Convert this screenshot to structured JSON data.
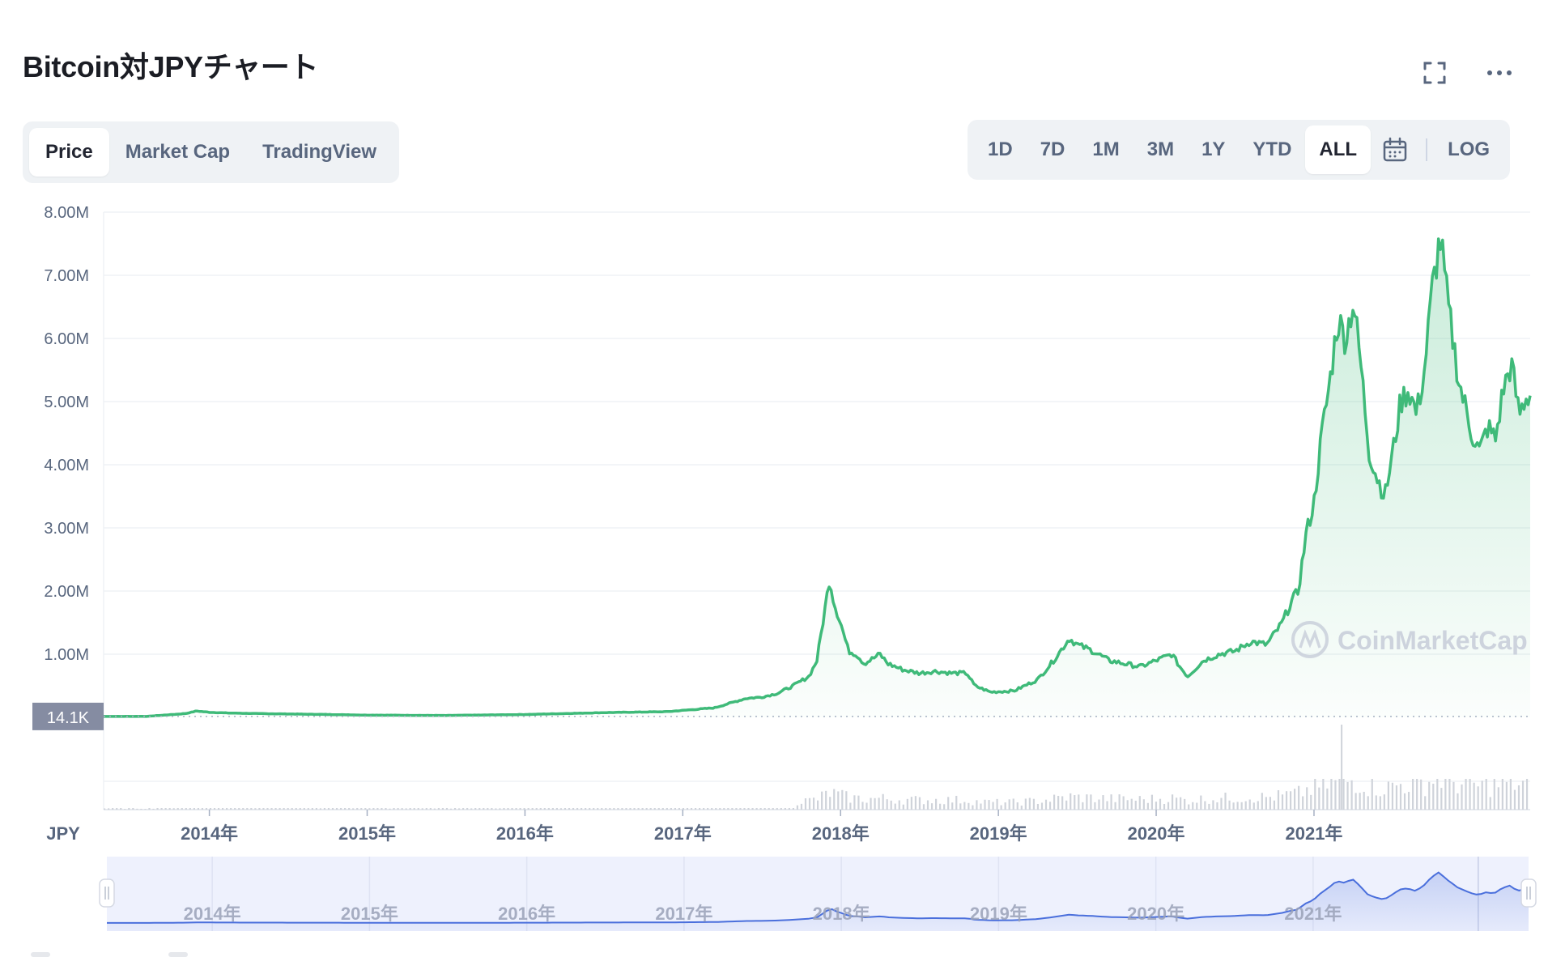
{
  "header": {
    "title": "Bitcoin対JPYチャート",
    "fullscreen_icon": "expand-icon",
    "more_icon": "more-dots-icon"
  },
  "view_tabs": [
    {
      "label": "Price",
      "active": true
    },
    {
      "label": "Market Cap",
      "active": false
    },
    {
      "label": "TradingView",
      "active": false
    }
  ],
  "range_tabs": [
    {
      "label": "1D",
      "active": false
    },
    {
      "label": "7D",
      "active": false
    },
    {
      "label": "1M",
      "active": false
    },
    {
      "label": "3M",
      "active": false
    },
    {
      "label": "1Y",
      "active": false
    },
    {
      "label": "YTD",
      "active": false
    },
    {
      "label": "ALL",
      "active": true
    }
  ],
  "calendar_icon": "calendar-icon",
  "log_label": "LOG",
  "watermark": "CoinMarketCap",
  "colors": {
    "line": "#3fba79",
    "fill": "#3fba79",
    "navigator_line": "#4a6fdc",
    "navigator_bg": "#eef1fd",
    "baseline_badge": "#858ca2",
    "grid": "#eff2f5",
    "axis_text": "#58667e",
    "volume": "#cfd3da"
  },
  "chart_data": {
    "type": "line",
    "title": "Bitcoin対JPYチャート",
    "ylabel": "JPY",
    "ylim": [
      0,
      8000000
    ],
    "y_ticks": [
      "1.00M",
      "2.00M",
      "3.00M",
      "4.00M",
      "5.00M",
      "6.00M",
      "7.00M",
      "8.00M"
    ],
    "y_tick_values": [
      1000000,
      2000000,
      3000000,
      4000000,
      5000000,
      6000000,
      7000000,
      8000000
    ],
    "x_tick_labels": [
      "2014年",
      "2015年",
      "2016年",
      "2017年",
      "2018年",
      "2019年",
      "2020年",
      "2021年"
    ],
    "x_tick_years": [
      2014,
      2015,
      2016,
      2017,
      2018,
      2019,
      2020,
      2021
    ],
    "xlim": [
      2013.33,
      2022.37
    ],
    "baseline_label": "14.1K",
    "baseline_value": 14100,
    "grid": true,
    "series": [
      {
        "x": [
          2013.33,
          2013.6,
          2013.85,
          2013.92,
          2014.0,
          2014.1,
          2014.3,
          2014.6,
          2014.9,
          2015.0,
          2015.5,
          2016.0,
          2016.5,
          2016.9,
          2017.0,
          2017.2,
          2017.4,
          2017.5,
          2017.6,
          2017.7,
          2017.8,
          2017.85,
          2017.9,
          2017.93,
          2017.96,
          2018.0,
          2018.05,
          2018.1,
          2018.15,
          2018.25,
          2018.3,
          2018.4,
          2018.5,
          2018.6,
          2018.7,
          2018.8,
          2018.85,
          2018.95,
          2019.1,
          2019.25,
          2019.35,
          2019.45,
          2019.5,
          2019.6,
          2019.7,
          2019.8,
          2019.9,
          2020.0,
          2020.1,
          2020.15,
          2020.2,
          2020.3,
          2020.4,
          2020.5,
          2020.6,
          2020.7,
          2020.8,
          2020.85,
          2020.9,
          2020.95,
          2021.0,
          2021.05,
          2021.1,
          2021.15,
          2021.2,
          2021.25,
          2021.3,
          2021.35,
          2021.4,
          2021.45,
          2021.5,
          2021.55,
          2021.6,
          2021.65,
          2021.7,
          2021.75,
          2021.8,
          2021.85,
          2021.88,
          2021.92,
          2021.95,
          2022.0,
          2022.05,
          2022.1,
          2022.15,
          2022.2,
          2022.25,
          2022.3,
          2022.35
        ],
        "y": [
          14100,
          15000,
          60000,
          100000,
          80000,
          70000,
          60000,
          50000,
          40000,
          35000,
          30000,
          45000,
          75000,
          90000,
          110000,
          150000,
          300000,
          320000,
          380000,
          500000,
          650000,
          900000,
          1700000,
          2200000,
          1800000,
          1500000,
          1050000,
          1000000,
          850000,
          1000000,
          850000,
          750000,
          700000,
          730000,
          700000,
          700000,
          500000,
          400000,
          420000,
          600000,
          900000,
          1250000,
          1150000,
          1050000,
          900000,
          850000,
          800000,
          900000,
          1000000,
          800000,
          650000,
          900000,
          1000000,
          1050000,
          1200000,
          1150000,
          1500000,
          1800000,
          2000000,
          2900000,
          3400000,
          4500000,
          5300000,
          6300000,
          6000000,
          6600000,
          5500000,
          4200000,
          3800000,
          3500000,
          4200000,
          5000000,
          5200000,
          4800000,
          5500000,
          6800000,
          7600000,
          6500000,
          6000000,
          5300000,
          5000000,
          4500000,
          4200000,
          4600000,
          4400000,
          5200000,
          5600000,
          4800000,
          5100000
        ]
      }
    ],
    "volume_peak_year": 2021.17
  }
}
